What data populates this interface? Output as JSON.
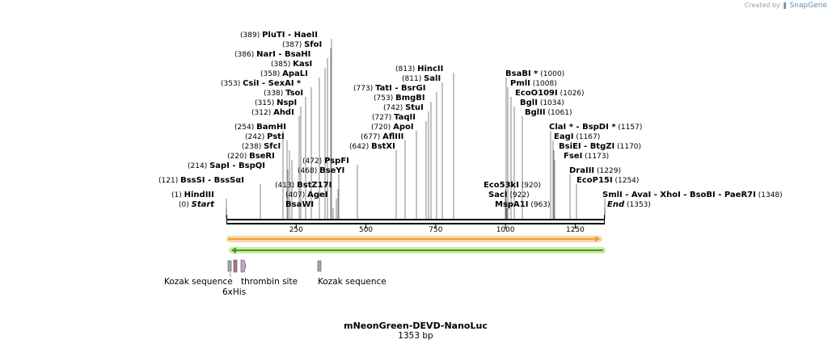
{
  "credit": {
    "prefix": "Created by",
    "brand": "SnapGene"
  },
  "map": {
    "title": "mNeonGreen-DEVD-NanoLuc",
    "length_label": "1353 bp"
  },
  "ruler": {
    "ticks": [
      "250",
      "500",
      "750",
      "1000",
      "1250"
    ]
  },
  "sites": [
    {
      "pos": "(389)",
      "name": "PluTI",
      "name2": "HaeII"
    },
    {
      "pos": "(387)",
      "name": "SfoI"
    },
    {
      "pos": "(386)",
      "name": "NarI",
      "name2": "BsaHI"
    },
    {
      "pos": "(385)",
      "name": "KasI"
    },
    {
      "pos": "(358)",
      "name": "ApaLI"
    },
    {
      "pos": "(353)",
      "name": "CsiI",
      "name2": "SexAI *"
    },
    {
      "pos": "(338)",
      "name": "TsoI"
    },
    {
      "pos": "(315)",
      "name": "NspI"
    },
    {
      "pos": "(312)",
      "name": "AhdI"
    },
    {
      "pos": "(254)",
      "name": "BamHI"
    },
    {
      "pos": "(242)",
      "name": "PstI"
    },
    {
      "pos": "(238)",
      "name": "SfcI"
    },
    {
      "pos": "(220)",
      "name": "BseRI"
    },
    {
      "pos": "(214)",
      "name": "SapI",
      "name2": "BspQI"
    },
    {
      "pos": "(121)",
      "name": "BssSI",
      "name2": "BssSαI"
    },
    {
      "pos": "(1)",
      "name": "HindIII"
    },
    {
      "pos": "(0)",
      "name": "Start"
    },
    {
      "pos": "(472)",
      "name": "PspFI"
    },
    {
      "pos": "(468)",
      "name": "BseYI"
    },
    {
      "pos": "(413)",
      "name": "BstZ17I"
    },
    {
      "pos": "(407)",
      "name": "AgeI"
    },
    {
      "pos": "",
      "name": "BsaWI"
    },
    {
      "pos": "(813)",
      "name": "HincII"
    },
    {
      "pos": "(811)",
      "name": "SalI"
    },
    {
      "pos": "(773)",
      "name": "TatI",
      "name2": "BsrGI"
    },
    {
      "pos": "(753)",
      "name": "BmgBI"
    },
    {
      "pos": "(742)",
      "name": "StuI"
    },
    {
      "pos": "(727)",
      "name": "TaqII"
    },
    {
      "pos": "(720)",
      "name": "ApoI"
    },
    {
      "pos": "(677)",
      "name": "AflIII"
    },
    {
      "pos": "(642)",
      "name": "BstXI"
    },
    {
      "pos": "(1000)",
      "name": "BsaBI *"
    },
    {
      "pos": "(1008)",
      "name": "PmlI"
    },
    {
      "pos": "(1026)",
      "name": "EcoO109I"
    },
    {
      "pos": "(1034)",
      "name": "BglI"
    },
    {
      "pos": "(1061)",
      "name": "BglII"
    },
    {
      "pos": "(920)",
      "name": "Eco53kI"
    },
    {
      "pos": "(922)",
      "name": "SacI"
    },
    {
      "pos": "(963)",
      "name": "MspA1I"
    },
    {
      "pos": "(1157)",
      "name": "ClaI *",
      "name2": "BspDI *"
    },
    {
      "pos": "(1167)",
      "name": "EagI"
    },
    {
      "pos": "(1170)",
      "name": "BsiEI",
      "name2": "BtgZI"
    },
    {
      "pos": "(1173)",
      "name": "FseI"
    },
    {
      "pos": "(1229)",
      "name": "DraIII"
    },
    {
      "pos": "(1254)",
      "name": "EcoP15I"
    },
    {
      "pos": "(1348)",
      "name": "SmlI",
      "name2": "AvaI",
      "name3": "XhoI",
      "name4": "BsoBI",
      "name5": "PaeR7I"
    },
    {
      "pos": "(1353)",
      "name": "End"
    }
  ],
  "features": [
    {
      "label": "Kozak sequence",
      "color": "#a8a8a8"
    },
    {
      "label": "6xHis",
      "color": "#b07090"
    },
    {
      "label": "thrombin site",
      "color": "#c9a0c0"
    },
    {
      "label": "Kozak sequence",
      "color": "#a8a8a8"
    }
  ],
  "colors": {
    "orf_forward": "#f0a030",
    "orf_forward_glow": "#f6d7a8",
    "orf_reverse": "#3c9a1e",
    "orf_reverse_glow": "#cfeaa8"
  }
}
